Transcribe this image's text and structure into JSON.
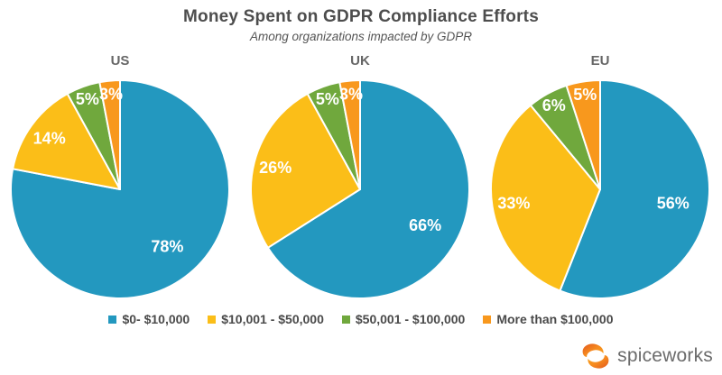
{
  "chart_data": {
    "type": "pie",
    "title": "Money Spent on GDPR Compliance Efforts",
    "subtitle": "Among organizations impacted by GDPR",
    "value_suffix": "%",
    "legend_position": "bottom",
    "series_colors": [
      "#2398BF",
      "#FBBE18",
      "#70A83D",
      "#F8981D"
    ],
    "categories": [
      "$0- $10,000",
      "$10,001 - $50,000",
      "$50,001 - $100,000",
      "More than $100,000"
    ],
    "charts": [
      {
        "label": "US",
        "values": [
          78,
          14,
          5,
          3
        ]
      },
      {
        "label": "UK",
        "values": [
          66,
          26,
          5,
          3
        ]
      },
      {
        "label": "EU",
        "values": [
          56,
          33,
          6,
          5
        ]
      }
    ]
  },
  "branding": {
    "logo_text": "spiceworks"
  }
}
